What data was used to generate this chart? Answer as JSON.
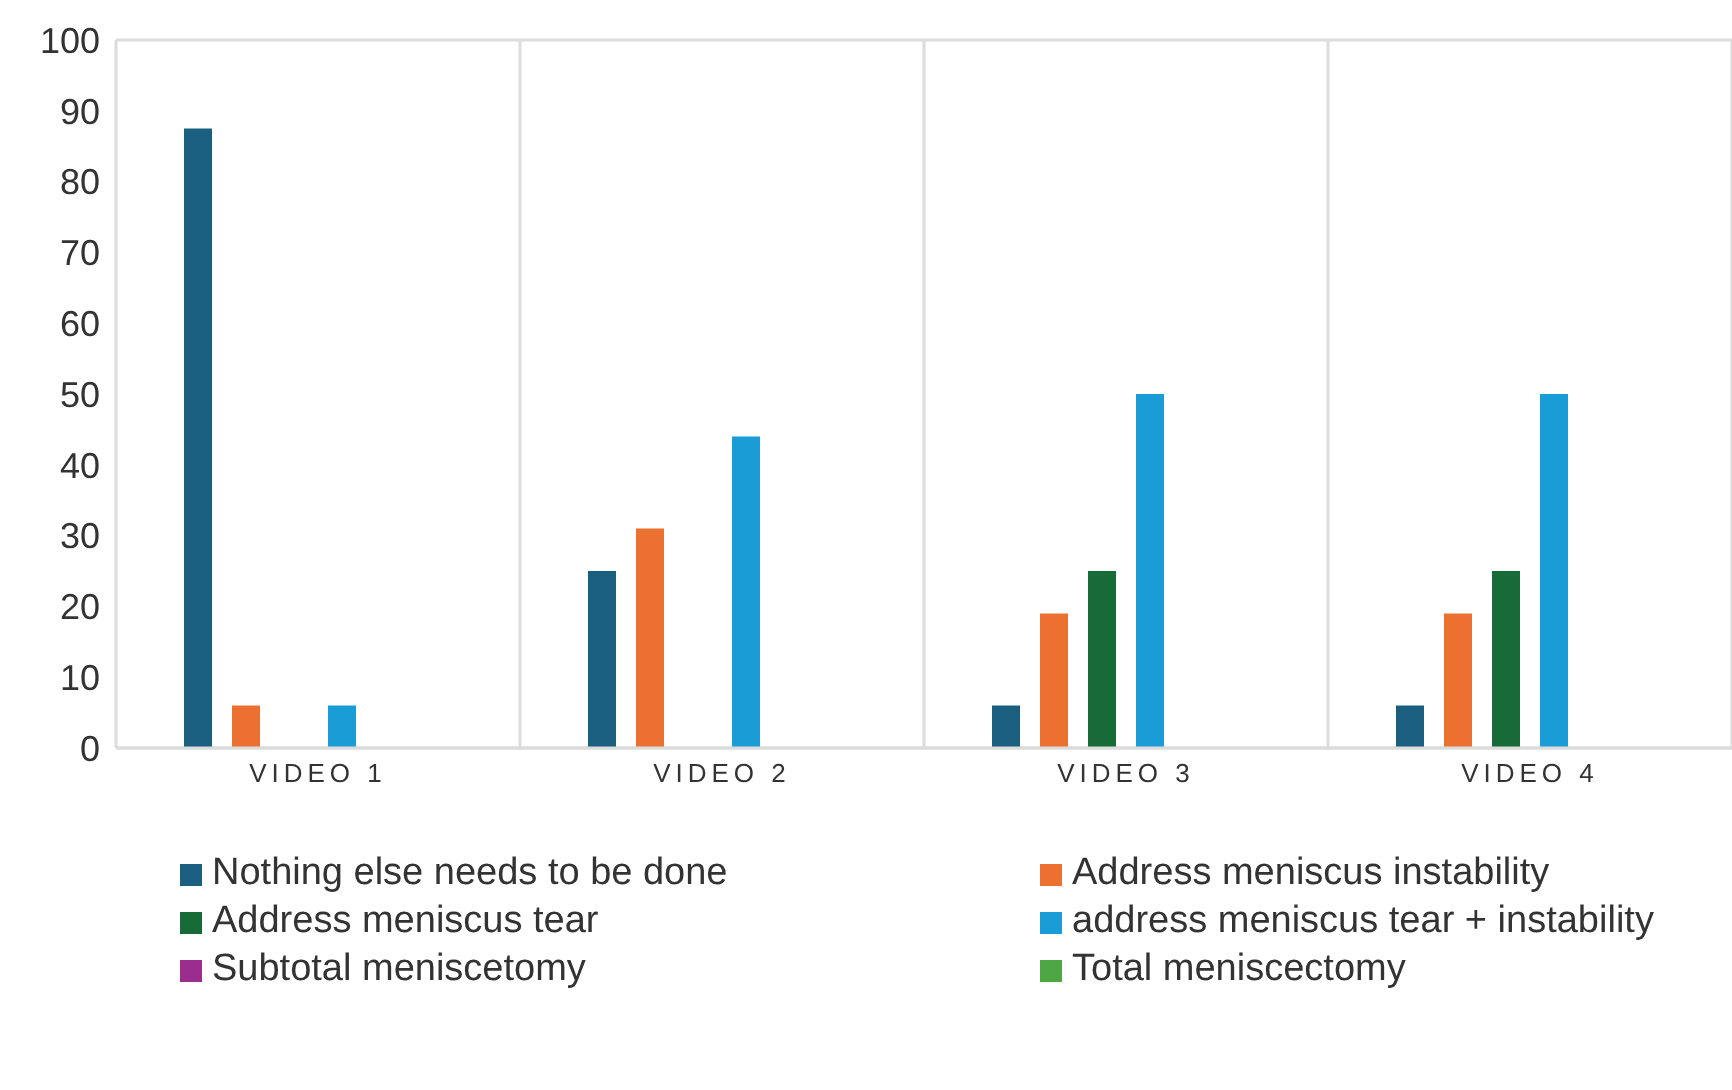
{
  "chart_data": {
    "type": "bar",
    "categories": [
      "VIDEO 1",
      "VIDEO 2",
      "VIDEO 3",
      "VIDEO 4"
    ],
    "series": [
      {
        "name": "Nothing else needs to be done",
        "color": "#1a5f80",
        "values": [
          87.5,
          25,
          6,
          6
        ]
      },
      {
        "name": "Address meniscus instability",
        "color": "#ec7030",
        "values": [
          6,
          31,
          19,
          19
        ]
      },
      {
        "name": "Address meniscus tear",
        "color": "#176b38",
        "values": [
          0,
          0,
          25,
          25
        ]
      },
      {
        "name": "address meniscus tear + instability",
        "color": "#1a9dd6",
        "values": [
          6,
          44,
          50,
          50
        ]
      },
      {
        "name": "Subtotal meniscetomy",
        "color": "#9b2d8f",
        "values": [
          0,
          0,
          0,
          0
        ]
      },
      {
        "name": "Total meniscectomy",
        "color": "#4fa645",
        "values": [
          0,
          0,
          0,
          0
        ]
      }
    ],
    "ylim": [
      0,
      100
    ],
    "yticks": [
      0,
      10,
      20,
      30,
      40,
      50,
      60,
      70,
      80,
      90,
      100
    ],
    "grid": true,
    "legend": "bottom"
  }
}
